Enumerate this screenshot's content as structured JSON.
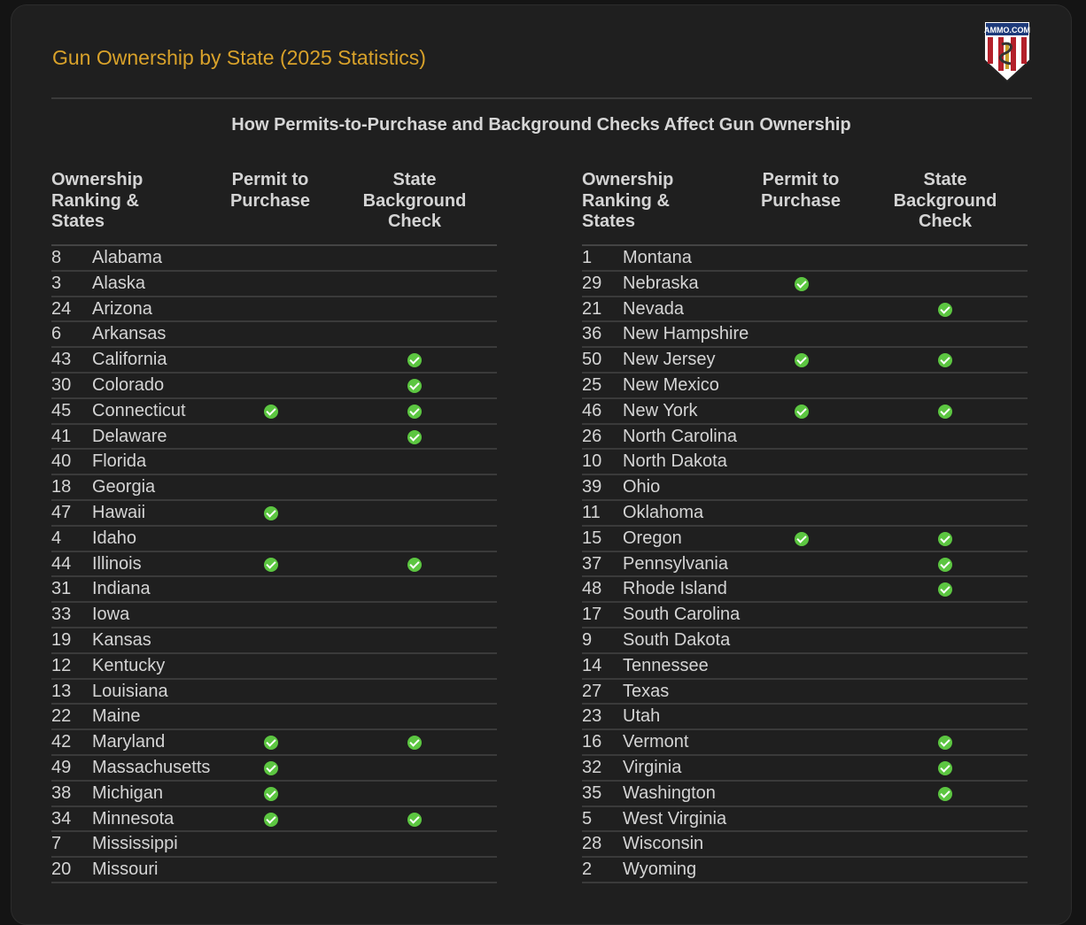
{
  "title": "Gun Ownership by State (2025 Statistics)",
  "logo_text": "AMMO.COM",
  "subtitle": "How Permits-to-Purchase and Background Checks Affect Gun Ownership",
  "headers": {
    "col1": "Ownership Ranking & States",
    "col2": "Permit to Purchase",
    "col3": "State Background Check"
  },
  "colors": {
    "accent": "#d9a22a",
    "check": "#5cc641"
  },
  "left": [
    {
      "rank": "8",
      "state": "Alabama",
      "permit": false,
      "check": false
    },
    {
      "rank": "3",
      "state": "Alaska",
      "permit": false,
      "check": false
    },
    {
      "rank": "24",
      "state": "Arizona",
      "permit": false,
      "check": false
    },
    {
      "rank": "6",
      "state": "Arkansas",
      "permit": false,
      "check": false
    },
    {
      "rank": "43",
      "state": "California",
      "permit": false,
      "check": true
    },
    {
      "rank": "30",
      "state": "Colorado",
      "permit": false,
      "check": true
    },
    {
      "rank": "45",
      "state": "Connecticut",
      "permit": true,
      "check": true
    },
    {
      "rank": "41",
      "state": "Delaware",
      "permit": false,
      "check": true
    },
    {
      "rank": "40",
      "state": "Florida",
      "permit": false,
      "check": false
    },
    {
      "rank": "18",
      "state": "Georgia",
      "permit": false,
      "check": false
    },
    {
      "rank": "47",
      "state": "Hawaii",
      "permit": true,
      "check": false
    },
    {
      "rank": "4",
      "state": "Idaho",
      "permit": false,
      "check": false
    },
    {
      "rank": "44",
      "state": "Illinois",
      "permit": true,
      "check": true
    },
    {
      "rank": "31",
      "state": "Indiana",
      "permit": false,
      "check": false
    },
    {
      "rank": "33",
      "state": "Iowa",
      "permit": false,
      "check": false
    },
    {
      "rank": "19",
      "state": "Kansas",
      "permit": false,
      "check": false
    },
    {
      "rank": "12",
      "state": "Kentucky",
      "permit": false,
      "check": false
    },
    {
      "rank": "13",
      "state": "Louisiana",
      "permit": false,
      "check": false
    },
    {
      "rank": "22",
      "state": "Maine",
      "permit": false,
      "check": false
    },
    {
      "rank": "42",
      "state": "Maryland",
      "permit": true,
      "check": true
    },
    {
      "rank": "49",
      "state": "Massachusetts",
      "permit": true,
      "check": false
    },
    {
      "rank": "38",
      "state": "Michigan",
      "permit": true,
      "check": false
    },
    {
      "rank": "34",
      "state": "Minnesota",
      "permit": true,
      "check": true
    },
    {
      "rank": "7",
      "state": "Mississippi",
      "permit": false,
      "check": false
    },
    {
      "rank": "20",
      "state": "Missouri",
      "permit": false,
      "check": false
    }
  ],
  "right": [
    {
      "rank": "1",
      "state": "Montana",
      "permit": false,
      "check": false
    },
    {
      "rank": "29",
      "state": "Nebraska",
      "permit": true,
      "check": false
    },
    {
      "rank": "21",
      "state": "Nevada",
      "permit": false,
      "check": true
    },
    {
      "rank": "36",
      "state": "New Hampshire",
      "permit": false,
      "check": false
    },
    {
      "rank": "50",
      "state": "New Jersey",
      "permit": true,
      "check": true
    },
    {
      "rank": "25",
      "state": "New Mexico",
      "permit": false,
      "check": false
    },
    {
      "rank": "46",
      "state": "New York",
      "permit": true,
      "check": true
    },
    {
      "rank": "26",
      "state": "North Carolina",
      "permit": false,
      "check": false
    },
    {
      "rank": "10",
      "state": "North Dakota",
      "permit": false,
      "check": false
    },
    {
      "rank": "39",
      "state": "Ohio",
      "permit": false,
      "check": false
    },
    {
      "rank": "11",
      "state": "Oklahoma",
      "permit": false,
      "check": false
    },
    {
      "rank": "15",
      "state": "Oregon",
      "permit": true,
      "check": true
    },
    {
      "rank": "37",
      "state": "Pennsylvania",
      "permit": false,
      "check": true
    },
    {
      "rank": "48",
      "state": "Rhode Island",
      "permit": false,
      "check": true
    },
    {
      "rank": "17",
      "state": "South Carolina",
      "permit": false,
      "check": false
    },
    {
      "rank": "9",
      "state": "South Dakota",
      "permit": false,
      "check": false
    },
    {
      "rank": "14",
      "state": "Tennessee",
      "permit": false,
      "check": false
    },
    {
      "rank": "27",
      "state": "Texas",
      "permit": false,
      "check": false
    },
    {
      "rank": "23",
      "state": "Utah",
      "permit": false,
      "check": false
    },
    {
      "rank": "16",
      "state": "Vermont",
      "permit": false,
      "check": true
    },
    {
      "rank": "32",
      "state": "Virginia",
      "permit": false,
      "check": true
    },
    {
      "rank": "35",
      "state": "Washington",
      "permit": false,
      "check": true
    },
    {
      "rank": "5",
      "state": "West Virginia",
      "permit": false,
      "check": false
    },
    {
      "rank": "28",
      "state": "Wisconsin",
      "permit": false,
      "check": false
    },
    {
      "rank": "2",
      "state": "Wyoming",
      "permit": false,
      "check": false
    }
  ]
}
